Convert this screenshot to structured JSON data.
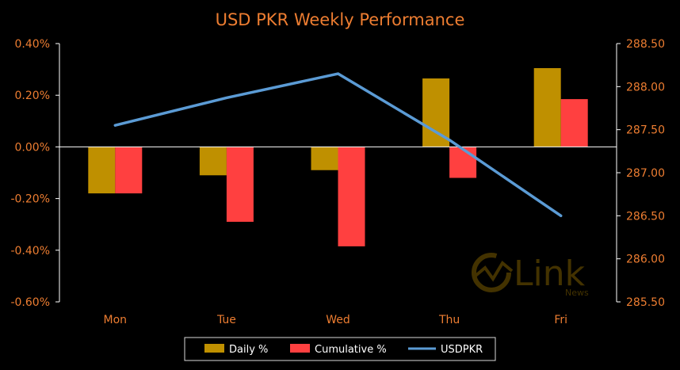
{
  "chart_data": {
    "type": "bar",
    "title": "USD PKR Weekly Performance",
    "xlabel": "",
    "ylabel": "",
    "categories": [
      "Mon",
      "Tue",
      "Wed",
      "Thu",
      "Fri"
    ],
    "y_left": {
      "lim": [
        -0.6,
        0.4
      ],
      "ticks": [
        0.4,
        0.2,
        0.0,
        -0.2,
        -0.4,
        -0.6
      ],
      "tick_labels": [
        "0.40%",
        "0.20%",
        "0.00%",
        "-0.20%",
        "-0.40%",
        "-0.60%"
      ]
    },
    "y_right": {
      "lim": [
        285.5,
        288.5
      ],
      "ticks": [
        288.5,
        288.0,
        287.5,
        287.0,
        286.5,
        286.0,
        285.5
      ],
      "tick_labels": [
        "288.50",
        "288.00",
        "287.50",
        "287.00",
        "286.50",
        "286.00",
        "285.50"
      ]
    },
    "series": [
      {
        "name": "Daily %",
        "kind": "bar",
        "axis": "left",
        "color": "#BF9000",
        "values": [
          -0.18,
          -0.11,
          -0.09,
          0.265,
          0.305
        ]
      },
      {
        "name": "Cumulative %",
        "kind": "bar",
        "axis": "left",
        "color": "#FF4040",
        "values": [
          -0.18,
          -0.29,
          -0.385,
          -0.12,
          0.185
        ]
      },
      {
        "name": "USDPKR",
        "kind": "line",
        "axis": "right",
        "color": "#5B9BD5",
        "values": [
          287.55,
          287.87,
          288.15,
          287.38,
          286.5
        ]
      }
    ],
    "legend_position": "bottom",
    "grid": false
  },
  "colors": {
    "background": "#000000",
    "title": "#ED7D31",
    "tick_labels": "#ED7D31",
    "legend_text": "#FFFFFF",
    "axis_line": "#FFFFFF",
    "legend_border": "#D9D9D9"
  },
  "watermark": {
    "brand": "Link",
    "sub": "News",
    "icon": "link-news-logo-icon"
  }
}
